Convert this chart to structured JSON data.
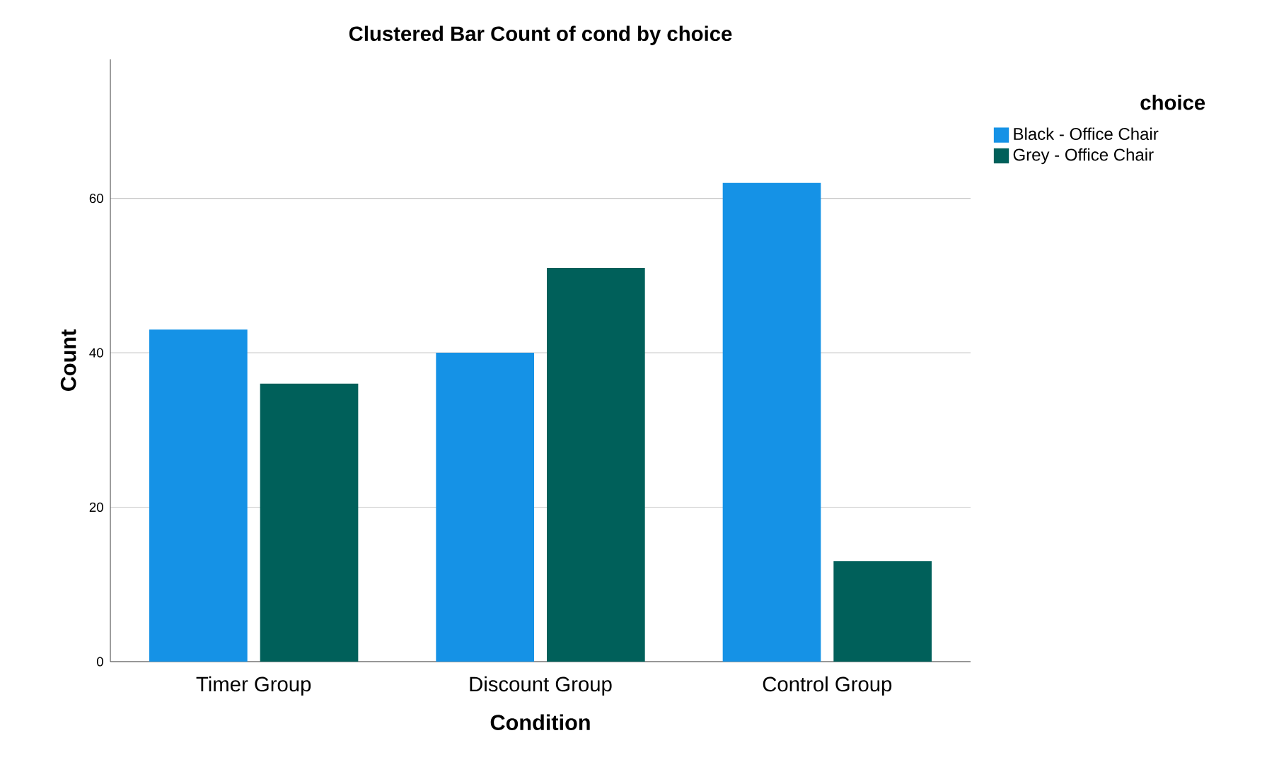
{
  "chart_data": {
    "type": "bar",
    "title": "Clustered Bar Count of cond by choice",
    "xlabel": "Condition",
    "ylabel": "Count",
    "legend_title": "choice",
    "categories": [
      "Timer Group",
      "Discount Group",
      "Control Group"
    ],
    "series": [
      {
        "name": "Black - Office Chair",
        "color": "#1592e6",
        "values": [
          43,
          40,
          62
        ]
      },
      {
        "name": "Grey - Office Chair",
        "color": "#00605a",
        "values": [
          36,
          51,
          13
        ]
      }
    ],
    "ylim": [
      0,
      78
    ],
    "yticks": [
      0,
      20,
      40,
      60
    ],
    "grid": "y",
    "legend": "top right"
  }
}
